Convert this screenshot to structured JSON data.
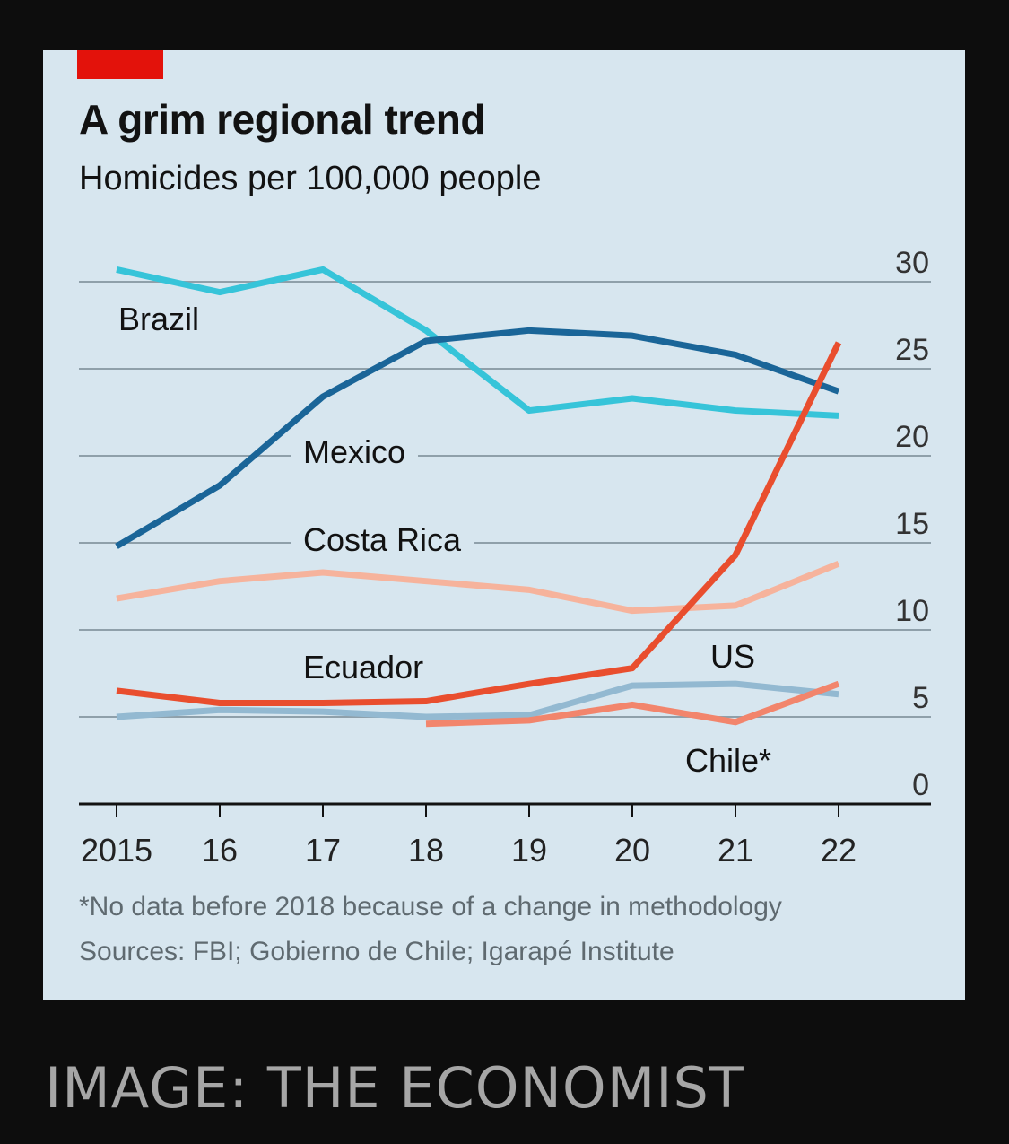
{
  "colors": {
    "accent_tag": "#e3120b",
    "grid": "#8fa0aa",
    "axis": "#121212"
  },
  "header": {
    "title": "A grim regional trend",
    "subtitle": "Homicides per 100,000 people"
  },
  "footer": {
    "footnote": "*No data before 2018 because of a change in methodology",
    "source": "Sources: FBI; Gobierno de Chile; Igarapé Institute"
  },
  "credit": "IMAGE: THE ECONOMIST",
  "chart_data": {
    "type": "line",
    "title": "A grim regional trend",
    "subtitle": "Homicides per 100,000 people",
    "x": [
      2015,
      2016,
      2017,
      2018,
      2019,
      2020,
      2021,
      2022
    ],
    "x_tick_labels": [
      "2015",
      "16",
      "17",
      "18",
      "19",
      "20",
      "21",
      "22"
    ],
    "ylim": [
      0,
      30
    ],
    "y_ticks": [
      0,
      5,
      10,
      15,
      20,
      25,
      30
    ],
    "y_tick_labels": [
      "0",
      "5",
      "10",
      "15",
      "20",
      "25",
      "30"
    ],
    "y_axis_side": "right",
    "grid": true,
    "series": [
      {
        "name": "Brazil",
        "label": "Brazil",
        "color": "#36c4d9",
        "values": [
          30.7,
          29.4,
          30.7,
          27.2,
          22.6,
          23.3,
          22.6,
          22.3
        ]
      },
      {
        "name": "Mexico",
        "label": "Mexico",
        "color": "#1a6598",
        "values": [
          14.8,
          18.3,
          23.4,
          26.6,
          27.2,
          26.9,
          25.8,
          23.7
        ]
      },
      {
        "name": "Costa Rica",
        "label": "Costa Rica",
        "color": "#f6b39c",
        "values": [
          11.8,
          12.8,
          13.3,
          12.8,
          12.3,
          11.1,
          11.4,
          13.8
        ]
      },
      {
        "name": "US",
        "label": "US",
        "color": "#93b9d1",
        "values": [
          5.0,
          5.4,
          5.3,
          5.0,
          5.1,
          6.8,
          6.9,
          6.3
        ]
      },
      {
        "name": "Chile",
        "label": "Chile*",
        "color": "#f2856c",
        "values": [
          null,
          null,
          null,
          4.6,
          4.8,
          5.7,
          4.7,
          6.9
        ]
      },
      {
        "name": "Ecuador",
        "label": "Ecuador",
        "color": "#e94e2e",
        "values": [
          6.5,
          5.8,
          5.8,
          5.9,
          6.9,
          7.8,
          14.3,
          26.5
        ]
      }
    ]
  }
}
